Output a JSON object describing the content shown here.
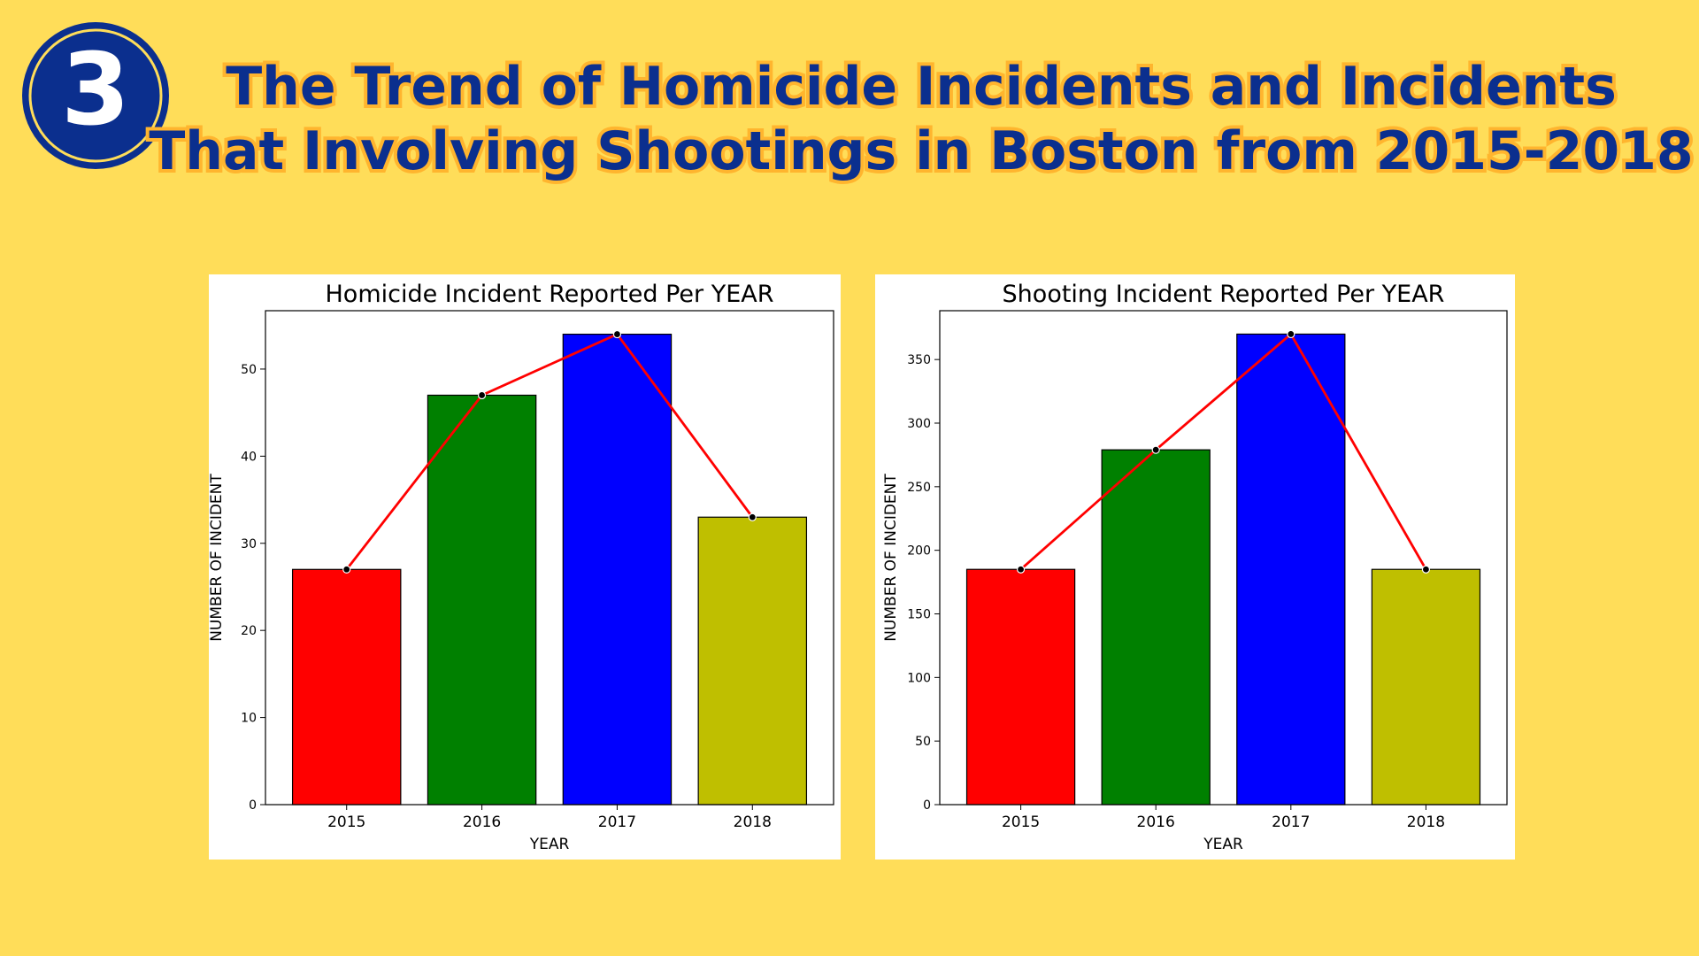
{
  "slide": {
    "badge": "3",
    "title_lines": [
      "The Trend of Homicide Incidents and Incidents",
      "That Involving Shootings in Boston from 2015-2018"
    ]
  },
  "chart_data": [
    {
      "type": "bar",
      "title": "Homicide Incident Reported Per YEAR",
      "x_label": "YEAR",
      "y_label": "NUMBER OF INCIDENT",
      "categories": [
        "2015",
        "2016",
        "2017",
        "2018"
      ],
      "values": [
        27,
        47,
        54,
        33
      ],
      "colors": [
        "#ff0000",
        "#008000",
        "#0000ff",
        "#bfbf00"
      ],
      "line_color": "#ff0000",
      "ylim": [
        0,
        56.7
      ],
      "yticks": [
        0,
        10,
        20,
        30,
        40,
        50
      ]
    },
    {
      "type": "bar",
      "title": "Shooting Incident Reported Per YEAR",
      "x_label": "YEAR",
      "y_label": "NUMBER OF INCIDENT",
      "categories": [
        "2015",
        "2016",
        "2017",
        "2018"
      ],
      "values": [
        185,
        279,
        370,
        185
      ],
      "colors": [
        "#ff0000",
        "#008000",
        "#0000ff",
        "#bfbf00"
      ],
      "line_color": "#ff0000",
      "ylim": [
        0,
        388.4
      ],
      "yticks": [
        0,
        50,
        100,
        150,
        200,
        250,
        300,
        350
      ]
    }
  ]
}
